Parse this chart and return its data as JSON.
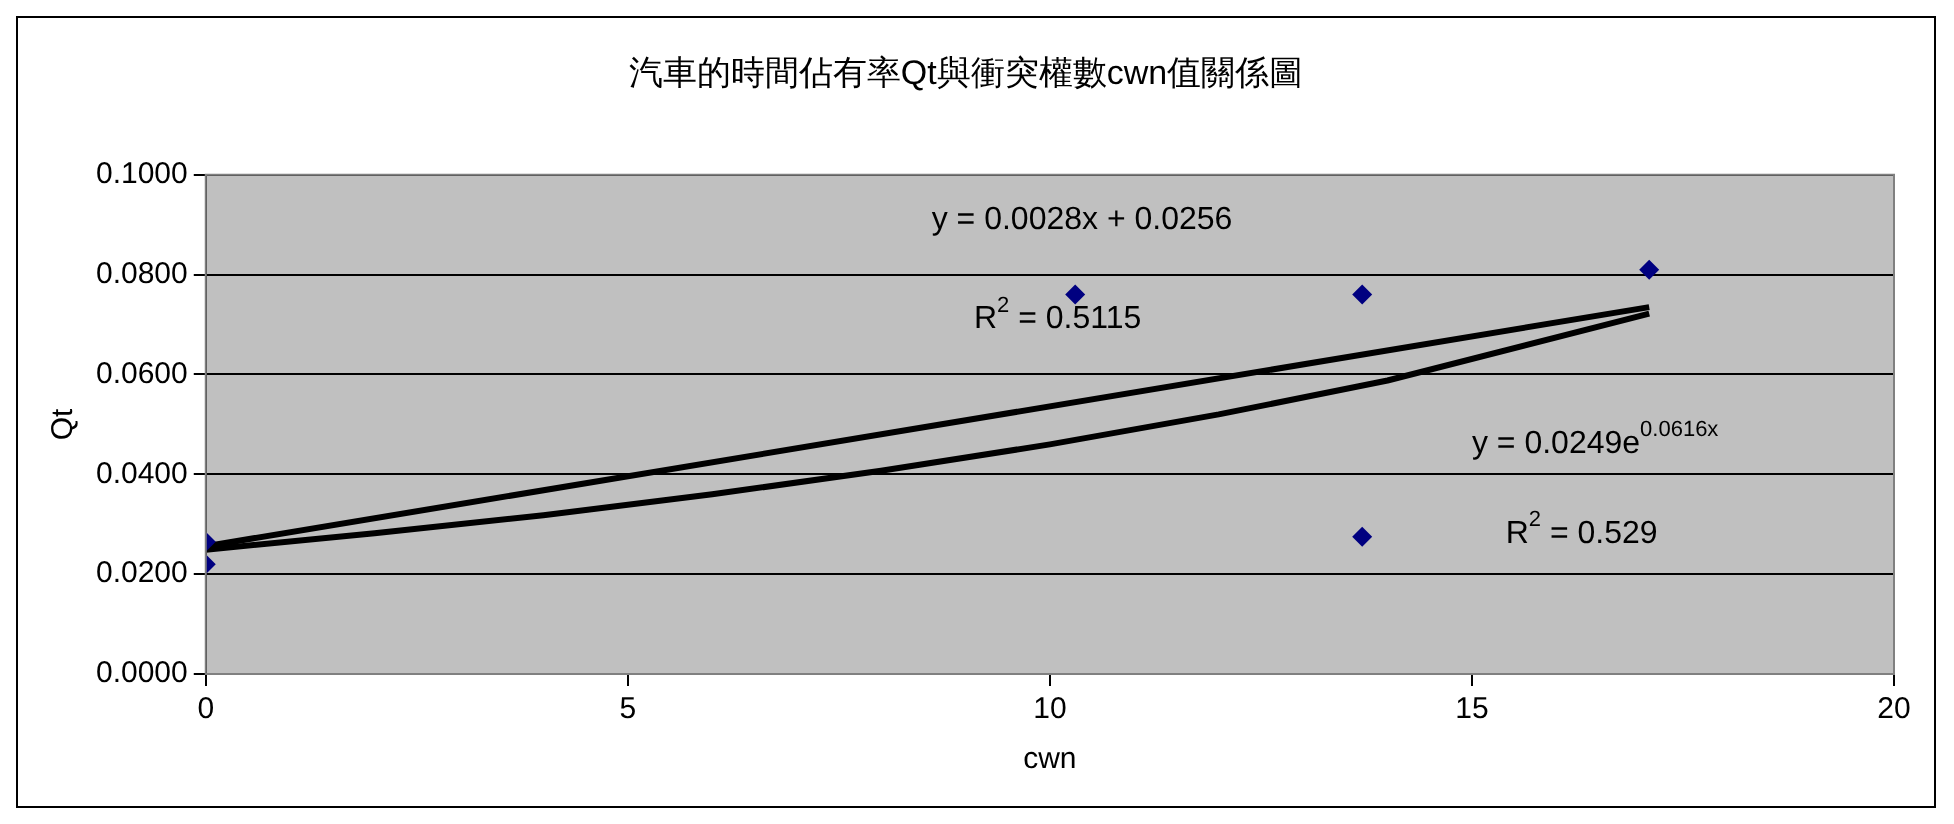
{
  "chart_data": {
    "type": "scatter",
    "title": "汽車的時間佔有率Qt與衝突權數cwn值關係圖",
    "xlabel": "cwn",
    "ylabel": "Qt",
    "x": [
      0,
      0,
      10.3,
      13.7,
      13.7,
      17.1
    ],
    "series": [
      {
        "color": "#000080",
        "marker": "diamond",
        "values": [
          0.0265,
          0.022,
          0.076,
          0.076,
          0.0275,
          0.081
        ]
      },
      {
        "type": "line",
        "color": "#000000",
        "x": [
          0,
          17.1
        ],
        "values": [
          0.0256,
          0.0735
        ]
      },
      {
        "type": "line",
        "color": "#000000",
        "x": [
          0,
          2,
          4,
          6,
          8,
          10,
          12,
          14,
          17.1
        ],
        "values": [
          0.0249,
          0.0282,
          0.0318,
          0.036,
          0.0407,
          0.046,
          0.052,
          0.0588,
          0.0722
        ]
      }
    ],
    "xlim": [
      0,
      20
    ],
    "xticks": [
      0,
      5,
      10,
      15,
      20
    ],
    "ylim": [
      0,
      0.1
    ],
    "yticks": [
      {
        "value": 0,
        "label": "0.0000"
      },
      {
        "value": 0.02,
        "label": "0.0200"
      },
      {
        "value": 0.04,
        "label": "0.0400"
      },
      {
        "value": 0.06,
        "label": "0.0600"
      },
      {
        "value": 0.08,
        "label": "0.0800"
      },
      {
        "value": 0.1,
        "label": "0.1000"
      }
    ],
    "grid": "y",
    "legend": false,
    "annotations": [
      "y = 0.0028x + 0.0256",
      "R$^{2}$ = 0.5115",
      "y = 0.0249e$^{0.0616x}$",
      "R$^{2}$ = 0.529"
    ]
  }
}
